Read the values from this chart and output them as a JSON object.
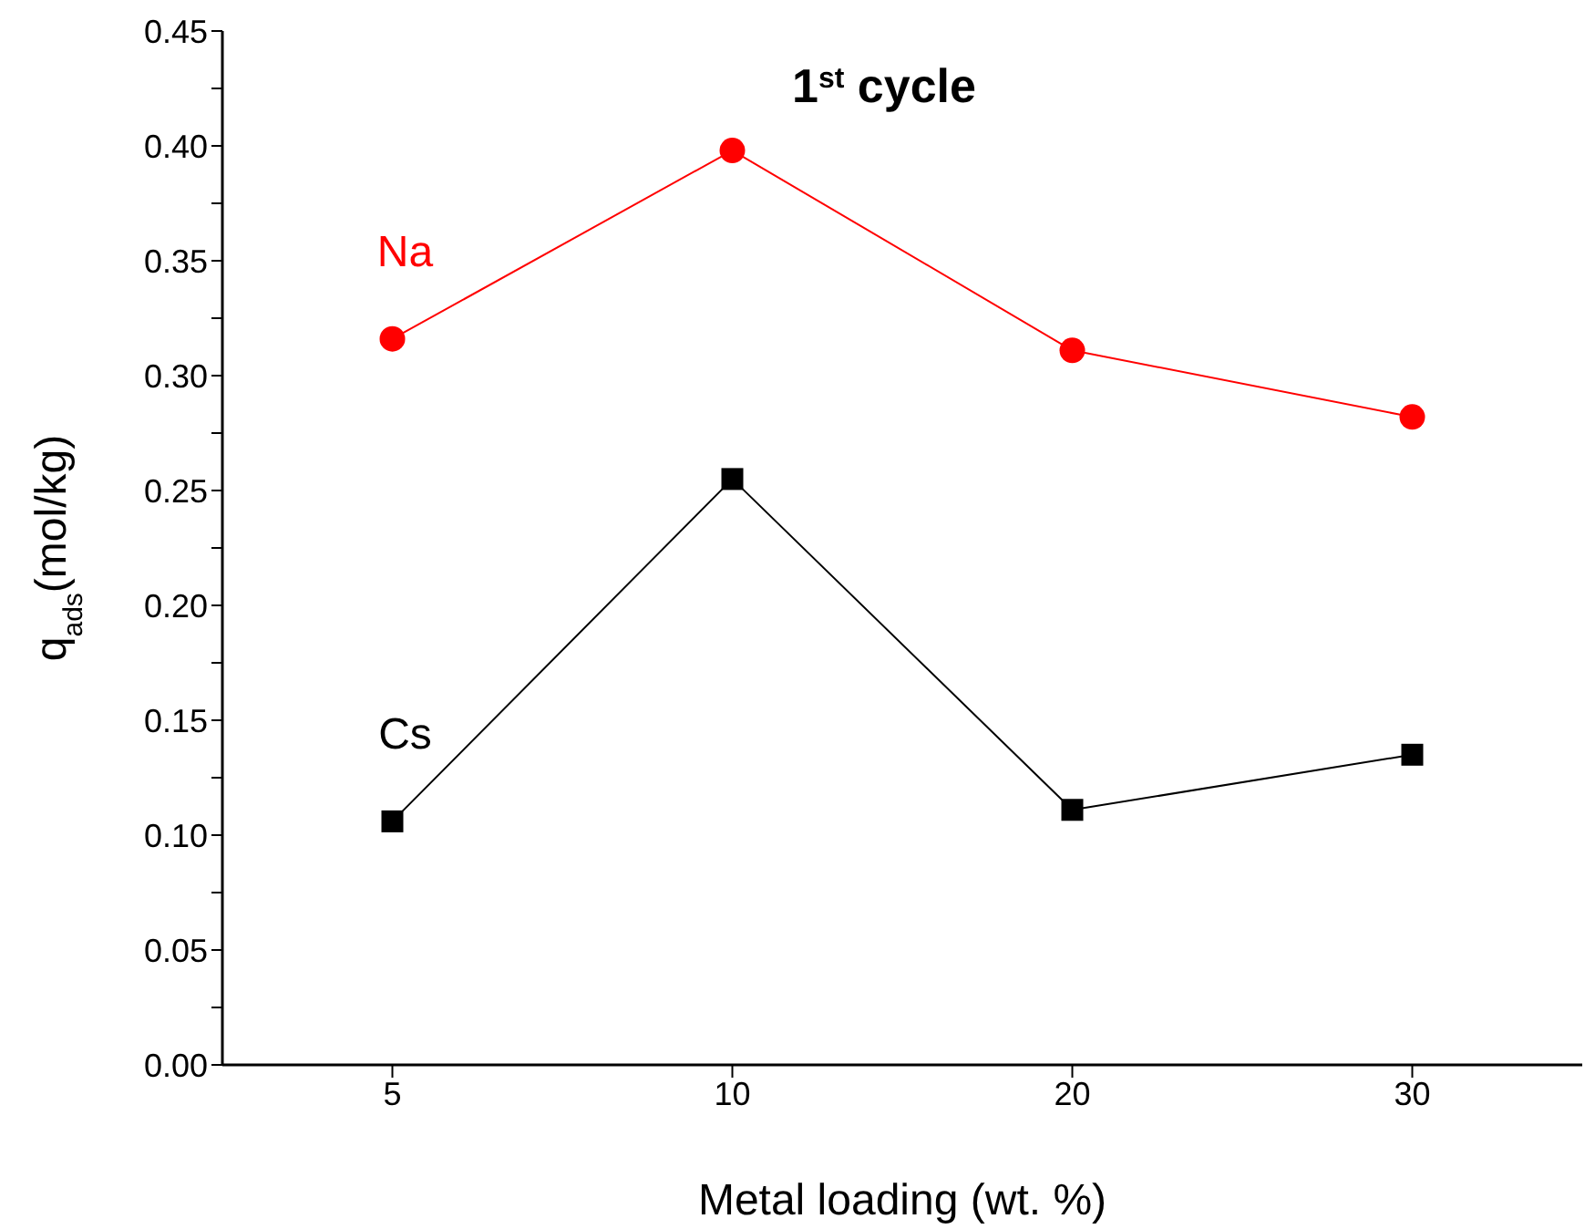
{
  "chart_data": {
    "type": "line",
    "title": "1$^{st}$ cycle",
    "xlabel": "Metal loading (wt. %)",
    "ylabel": "q$_{ads}$(mol/kg)",
    "categories": [
      "5",
      "10",
      "20",
      "30"
    ],
    "series": [
      {
        "name": "Na",
        "color": "#ff0000",
        "marker": "circle",
        "values": [
          0.316,
          0.398,
          0.311,
          0.282
        ]
      },
      {
        "name": "Cs",
        "color": "#000000",
        "marker": "square",
        "values": [
          0.106,
          0.255,
          0.111,
          0.135
        ]
      }
    ],
    "ylim": [
      0,
      0.45
    ],
    "yticks": [
      {
        "value": 0,
        "label": "0.00"
      },
      {
        "value": 0.025,
        "label": null
      },
      {
        "value": 0.05,
        "label": "0.05"
      },
      {
        "value": 0.075,
        "label": null
      },
      {
        "value": 0.1,
        "label": "0.10"
      },
      {
        "value": 0.125,
        "label": null
      },
      {
        "value": 0.15,
        "label": "0.15"
      },
      {
        "value": 0.175,
        "label": null
      },
      {
        "value": 0.2,
        "label": "0.20"
      },
      {
        "value": 0.225,
        "label": null
      },
      {
        "value": 0.25,
        "label": "0.25"
      },
      {
        "value": 0.275,
        "label": null
      },
      {
        "value": 0.3,
        "label": "0.30"
      },
      {
        "value": 0.325,
        "label": null
      },
      {
        "value": 0.35,
        "label": "0.35"
      },
      {
        "value": 0.375,
        "label": null
      },
      {
        "value": 0.4,
        "label": "0.40"
      },
      {
        "value": 0.425,
        "label": null
      },
      {
        "value": 0.45,
        "label": "0.45"
      }
    ],
    "line_style": "solid"
  }
}
